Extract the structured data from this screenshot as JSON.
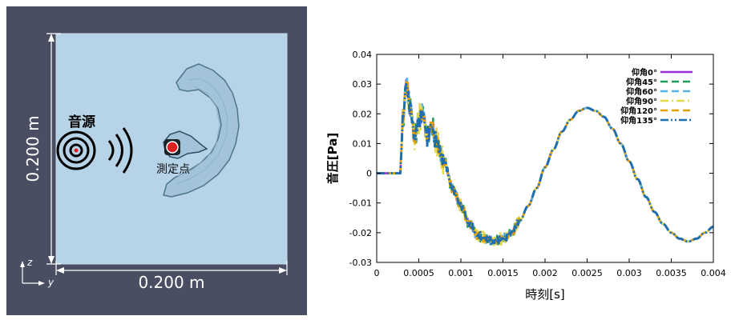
{
  "simulation": {
    "source_label": "音源",
    "measure_label": "測定点",
    "height_label": "0.200 m",
    "width_label": "0.200 m",
    "axis_z": "z",
    "axis_y": "y",
    "colors": {
      "frame": "#4a4e63",
      "domain": "#b7d3e7",
      "ear": "#9dbfd5",
      "ear_outline": "#5a7f93",
      "measure_point": "#e02020"
    }
  },
  "chart_data": {
    "type": "line",
    "xlabel": "時刻[s]",
    "ylabel": "音圧[Pa]",
    "xlim": [
      0,
      0.004
    ],
    "ylim": [
      -0.03,
      0.04
    ],
    "xticks": [
      "0",
      "0.0005",
      "0.001",
      "0.0015",
      "0.002",
      "0.0025",
      "0.003",
      "0.0035",
      "0.004"
    ],
    "yticks": [
      "0.04",
      "0.03",
      "0.02",
      "0.01",
      "0",
      "-0.01",
      "-0.02",
      "-0.03"
    ],
    "legend_position": "top-right",
    "grid": false,
    "series": [
      {
        "name": "仰角0°",
        "color": "#9b30d9",
        "dash": "solid",
        "jitter": 0.0008
      },
      {
        "name": "仰角45°",
        "color": "#1e9e5a",
        "dash": "dashed",
        "jitter": 0.0012
      },
      {
        "name": "仰角60°",
        "color": "#56b4e9",
        "dash": "dashed",
        "jitter": 0.001
      },
      {
        "name": "仰角90°",
        "color": "#e6d84a",
        "dash": "dashdot",
        "jitter": 0.0015
      },
      {
        "name": "仰角120°",
        "color": "#e69f00",
        "dash": "dashed",
        "jitter": 0.0011
      },
      {
        "name": "仰角135°",
        "color": "#1f6fb0",
        "dash": "dashdotdot",
        "jitter": 0.0009
      }
    ],
    "base_curve": {
      "x": [
        0,
        0.00028,
        0.00029,
        0.00031,
        0.00035,
        0.0004,
        0.00045,
        0.0005,
        0.00055,
        0.0006,
        0.00065,
        0.0007,
        0.0008,
        0.0009,
        0.001,
        0.0011,
        0.0012,
        0.0013,
        0.0014,
        0.0015,
        0.0016,
        0.0017,
        0.0018,
        0.0019,
        0.002,
        0.0021,
        0.0022,
        0.0023,
        0.0024,
        0.0025,
        0.0026,
        0.0027,
        0.0028,
        0.0029,
        0.003,
        0.0031,
        0.0032,
        0.0033,
        0.0034,
        0.0035,
        0.0036,
        0.0037,
        0.0038,
        0.0039,
        0.004
      ],
      "y": [
        0,
        0,
        0.006,
        0.018,
        0.03,
        0.022,
        0.012,
        0.018,
        0.02,
        0.012,
        0.016,
        0.011,
        0.004,
        -0.005,
        -0.011,
        -0.017,
        -0.021,
        -0.022,
        -0.023,
        -0.022,
        -0.02,
        -0.016,
        -0.011,
        -0.005,
        0.002,
        0.008,
        0.014,
        0.018,
        0.021,
        0.022,
        0.021,
        0.019,
        0.015,
        0.01,
        0.004,
        -0.002,
        -0.008,
        -0.013,
        -0.017,
        -0.02,
        -0.022,
        -0.023,
        -0.022,
        -0.02,
        -0.018
      ]
    }
  }
}
